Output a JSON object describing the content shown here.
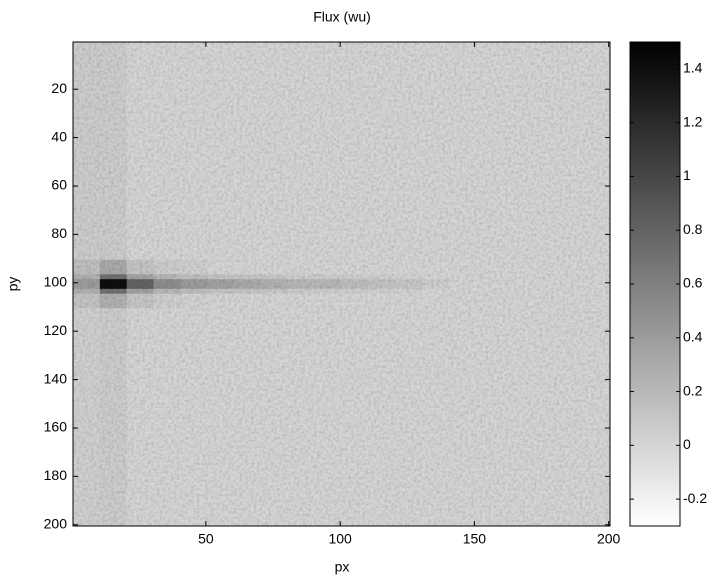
{
  "chart_data": {
    "type": "heatmap",
    "title": "Flux (wu)",
    "x_label": "px",
    "y_label": "py",
    "x_edges": [
      0.5,
      10.5,
      20.5,
      30.5,
      40.5,
      50.5,
      60.5,
      70.5,
      80.5,
      90.5,
      100.5,
      110.5,
      120.5,
      130.5,
      140.5,
      150.5,
      160.5,
      170.5,
      180.5,
      190.5,
      200.5
    ],
    "y_edges": [
      0.5,
      90.5,
      96.5,
      98.5,
      102.5,
      104.5,
      110.5,
      200.5
    ],
    "values": [
      [
        0.05,
        0.05,
        0,
        0,
        0,
        0,
        0,
        0,
        0,
        0,
        0,
        0,
        0,
        0,
        0,
        0,
        0,
        0,
        0,
        0
      ],
      [
        0.15,
        0.3,
        0.12,
        0.05,
        0.03,
        0,
        0,
        0,
        0,
        0,
        0,
        0,
        0,
        0,
        0,
        0,
        0,
        0,
        0,
        0
      ],
      [
        0.25,
        0.7,
        0.35,
        0.2,
        0.15,
        0.12,
        0.1,
        0.08,
        0.06,
        0.05,
        0.04,
        0.03,
        0.02,
        0,
        0,
        0,
        0,
        0,
        0,
        0
      ],
      [
        0.4,
        1.4,
        0.8,
        0.5,
        0.4,
        0.35,
        0.3,
        0.25,
        0.2,
        0.2,
        0.15,
        0.12,
        0.1,
        0.05,
        0,
        0,
        0,
        0,
        0,
        0
      ],
      [
        0.25,
        0.7,
        0.35,
        0.2,
        0.15,
        0.12,
        0.1,
        0.08,
        0.06,
        0.05,
        0.04,
        0.03,
        0.02,
        0,
        0,
        0,
        0,
        0,
        0,
        0
      ],
      [
        0.12,
        0.25,
        0.1,
        0.04,
        0.02,
        0,
        0,
        0,
        0,
        0,
        0,
        0,
        0,
        0,
        0,
        0,
        0,
        0,
        0,
        0
      ],
      [
        0.03,
        0.05,
        0,
        0,
        0,
        0,
        0,
        0,
        0,
        0,
        0,
        0,
        0,
        0,
        0,
        0,
        0,
        0,
        0,
        0
      ]
    ],
    "colormap": "gray-reversed",
    "xlim": [
      0.5,
      200.5
    ],
    "ylim": [
      0.5,
      200.5
    ],
    "y_reversed": true,
    "xticks": [
      50,
      100,
      150,
      200
    ],
    "yticks": [
      20,
      40,
      60,
      80,
      100,
      120,
      140,
      160,
      180,
      200
    ],
    "clim": [
      -0.3,
      1.5
    ],
    "cticks": [
      -0.2,
      0,
      0.2,
      0.4,
      0.6,
      0.8,
      1,
      1.2,
      1.4
    ]
  }
}
